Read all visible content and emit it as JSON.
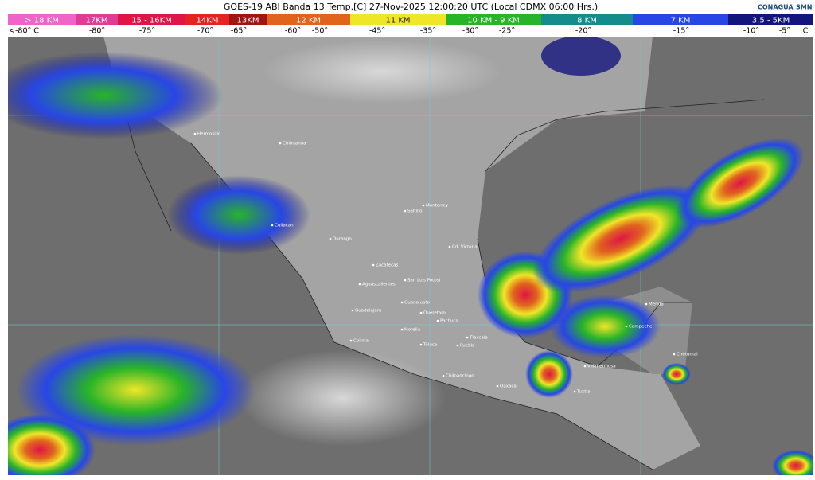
{
  "header": {
    "title": "GOES-19 ABI Banda 13 Temp.[C] 27-Nov-2025 12:00:20 UTC (Local CDMX  06:00 Hrs.)",
    "logos": [
      "CONAGUA",
      "SMN"
    ]
  },
  "scale": {
    "bands": [
      {
        "label": "> 18 KM",
        "color": "#f064c8"
      },
      {
        "label": "17KM",
        "color": "#e03c96"
      },
      {
        "label": "15 - 16KM",
        "color": "#e01446"
      },
      {
        "label": "14KM",
        "color": "#e62323"
      },
      {
        "label": "13KM",
        "color": "#a01414"
      },
      {
        "label": "12 KM",
        "color": "#e0641e"
      },
      {
        "label": "11 KM",
        "color": "#f0e628"
      },
      {
        "label": "10 KM - 9 KM",
        "color": "#28b428"
      },
      {
        "label": "8 KM",
        "color": "#148c8c"
      },
      {
        "label": "7 KM",
        "color": "#2846e6"
      },
      {
        "label": "3.5 - 5KM",
        "color": "#14147d"
      }
    ],
    "temperatures": [
      "<-80° C",
      "-80°",
      "-75°",
      "-70°",
      "-65°",
      "-60°",
      "-50°",
      "-45°",
      "-35°",
      "-30°",
      "-25°",
      "-20°",
      "-15°",
      "-10°",
      "-5°",
      "C"
    ]
  },
  "cities": [
    "Hermosillo",
    "Chihuahua",
    "Culiacan",
    "Durango",
    "Saltillo",
    "Monterrey",
    "Cd. Victoria",
    "Zacatecas",
    "San Luis Potosi",
    "Aguascalientes",
    "Guadalajara",
    "Guanajuato",
    "Queretaro",
    "Pachuca",
    "Morelia",
    "Colima",
    "Toluca",
    "Tlaxcala",
    "Puebla",
    "Chilpancingo",
    "Oaxaca",
    "Villahermosa",
    "Tuxtla",
    "Merida",
    "Campeche",
    "Chetumal"
  ]
}
